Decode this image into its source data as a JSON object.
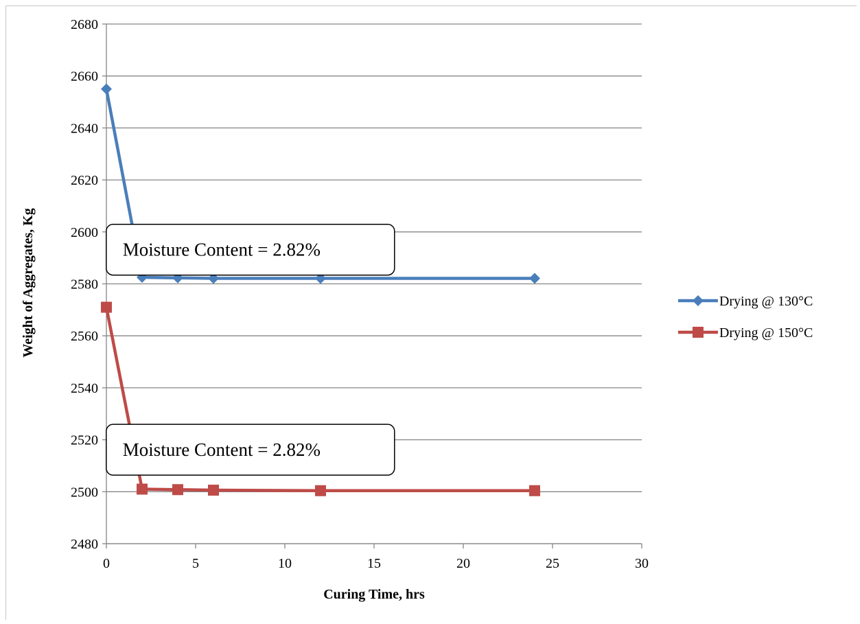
{
  "chart_data": {
    "type": "line",
    "title": "",
    "xlabel": "Curing Time, hrs",
    "ylabel": "Weight of Aggregates, Kg",
    "xlim": [
      0,
      30
    ],
    "ylim": [
      2480,
      2680
    ],
    "xticks": [
      0,
      5,
      10,
      15,
      20,
      25,
      30
    ],
    "yticks": [
      2480,
      2500,
      2520,
      2540,
      2560,
      2580,
      2600,
      2620,
      2640,
      2660,
      2680
    ],
    "grid": "horizontal",
    "legend_position": "right",
    "series": [
      {
        "name": "Drying @ 130°C",
        "color": "#4a7ebb",
        "marker": "diamond",
        "x": [
          0,
          2,
          4,
          6,
          12,
          24
        ],
        "y": [
          2655,
          2582.5,
          2582.3,
          2582.1,
          2582.1,
          2582.1
        ]
      },
      {
        "name": "Drying @ 150°C",
        "color": "#be4b48",
        "marker": "square",
        "x": [
          0,
          2,
          4,
          6,
          12,
          24
        ],
        "y": [
          2571,
          2501,
          2500.8,
          2500.6,
          2500.4,
          2500.4
        ]
      }
    ],
    "annotations": [
      {
        "text": "Moisture Content = 2.82%",
        "x": 7.3,
        "y": 2595
      },
      {
        "text": "Moisture Content = 2.82%",
        "x": 7.3,
        "y": 2518
      }
    ]
  }
}
